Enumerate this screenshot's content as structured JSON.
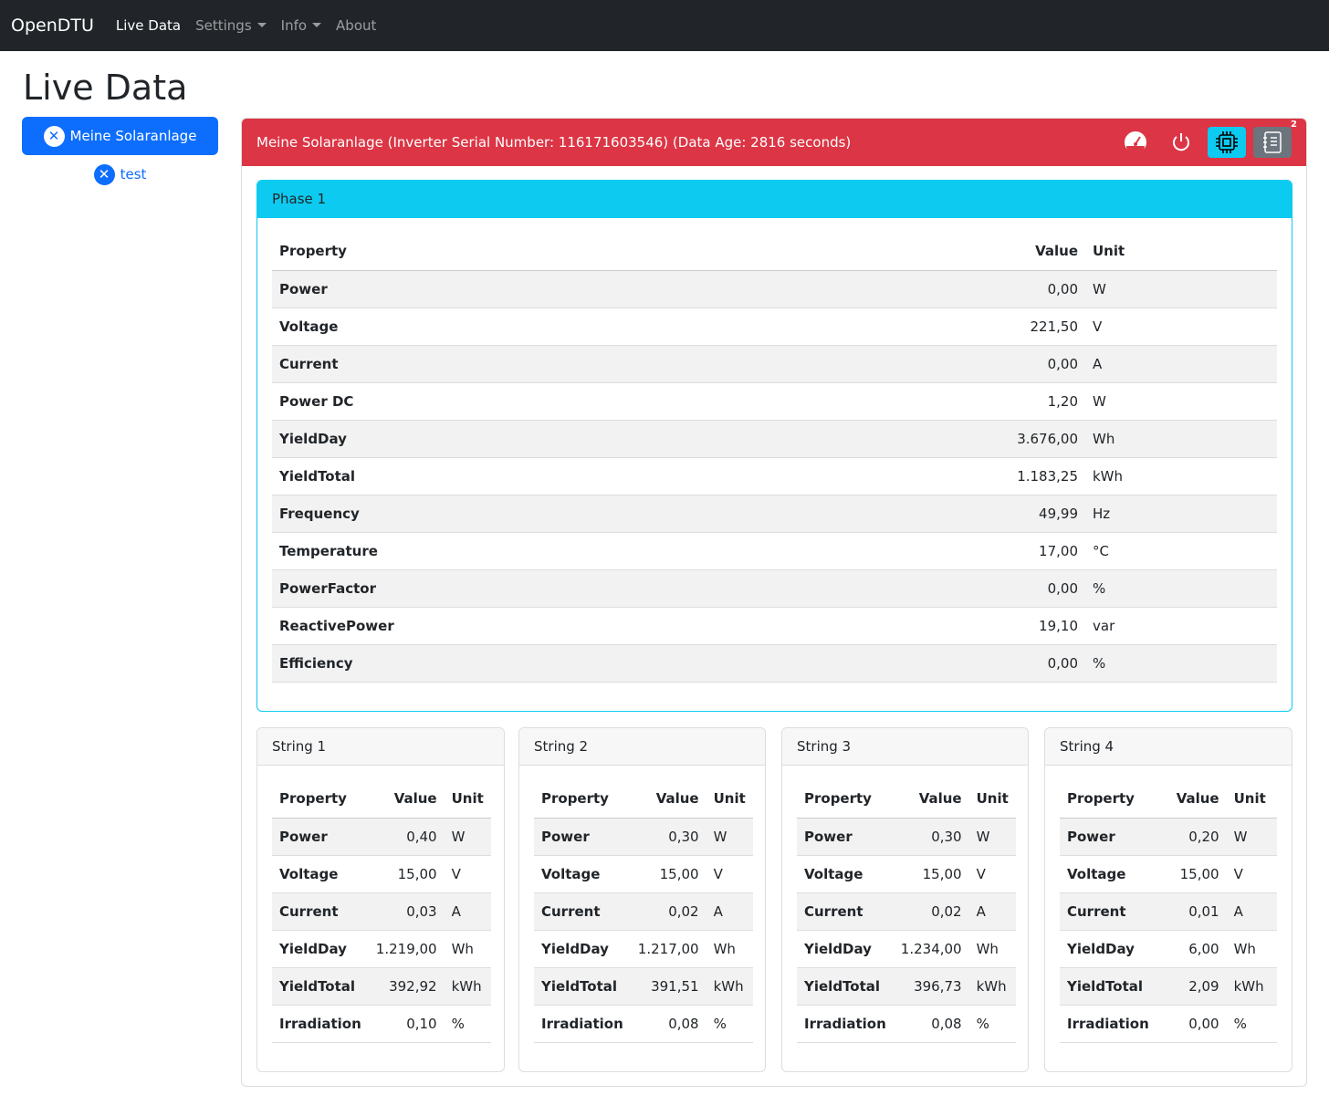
{
  "navbar": {
    "brand": "OpenDTU",
    "items": [
      {
        "label": "Live Data",
        "active": true
      },
      {
        "label": "Settings",
        "dropdown": true
      },
      {
        "label": "Info",
        "dropdown": true
      },
      {
        "label": "About"
      }
    ]
  },
  "page_title": "Live Data",
  "sidebar": {
    "items": [
      {
        "label": "Meine Solaranlage",
        "active": true,
        "icon": "x-circle-icon"
      },
      {
        "label": "test",
        "icon": "x-circle-icon"
      }
    ]
  },
  "inverter": {
    "header": "Meine Solaranlage (Inverter Serial Number: 116171603546) (Data Age: 2816 seconds)",
    "header_color": "#dc3545",
    "notification_count": "2",
    "buttons": [
      "speedometer-icon",
      "power-icon",
      "cpu-icon",
      "journal-icon"
    ]
  },
  "headers": {
    "property": "Property",
    "value": "Value",
    "unit": "Unit"
  },
  "phase": {
    "title": "Phase 1",
    "rows": [
      [
        "Power",
        "0,00",
        "W"
      ],
      [
        "Voltage",
        "221,50",
        "V"
      ],
      [
        "Current",
        "0,00",
        "A"
      ],
      [
        "Power DC",
        "1,20",
        "W"
      ],
      [
        "YieldDay",
        "3.676,00",
        "Wh"
      ],
      [
        "YieldTotal",
        "1.183,25",
        "kWh"
      ],
      [
        "Frequency",
        "49,99",
        "Hz"
      ],
      [
        "Temperature",
        "17,00",
        "°C"
      ],
      [
        "PowerFactor",
        "0,00",
        "%"
      ],
      [
        "ReactivePower",
        "19,10",
        "var"
      ],
      [
        "Efficiency",
        "0,00",
        "%"
      ]
    ]
  },
  "strings": [
    {
      "title": "String 1",
      "rows": [
        [
          "Power",
          "0,40",
          "W"
        ],
        [
          "Voltage",
          "15,00",
          "V"
        ],
        [
          "Current",
          "0,03",
          "A"
        ],
        [
          "YieldDay",
          "1.219,00",
          "Wh"
        ],
        [
          "YieldTotal",
          "392,92",
          "kWh"
        ],
        [
          "Irradiation",
          "0,10",
          "%"
        ]
      ]
    },
    {
      "title": "String 2",
      "rows": [
        [
          "Power",
          "0,30",
          "W"
        ],
        [
          "Voltage",
          "15,00",
          "V"
        ],
        [
          "Current",
          "0,02",
          "A"
        ],
        [
          "YieldDay",
          "1.217,00",
          "Wh"
        ],
        [
          "YieldTotal",
          "391,51",
          "kWh"
        ],
        [
          "Irradiation",
          "0,08",
          "%"
        ]
      ]
    },
    {
      "title": "String 3",
      "rows": [
        [
          "Power",
          "0,30",
          "W"
        ],
        [
          "Voltage",
          "15,00",
          "V"
        ],
        [
          "Current",
          "0,02",
          "A"
        ],
        [
          "YieldDay",
          "1.234,00",
          "Wh"
        ],
        [
          "YieldTotal",
          "396,73",
          "kWh"
        ],
        [
          "Irradiation",
          "0,08",
          "%"
        ]
      ]
    },
    {
      "title": "String 4",
      "rows": [
        [
          "Power",
          "0,20",
          "W"
        ],
        [
          "Voltage",
          "15,00",
          "V"
        ],
        [
          "Current",
          "0,01",
          "A"
        ],
        [
          "YieldDay",
          "6,00",
          "Wh"
        ],
        [
          "YieldTotal",
          "2,09",
          "kWh"
        ],
        [
          "Irradiation",
          "0,00",
          "%"
        ]
      ]
    }
  ]
}
